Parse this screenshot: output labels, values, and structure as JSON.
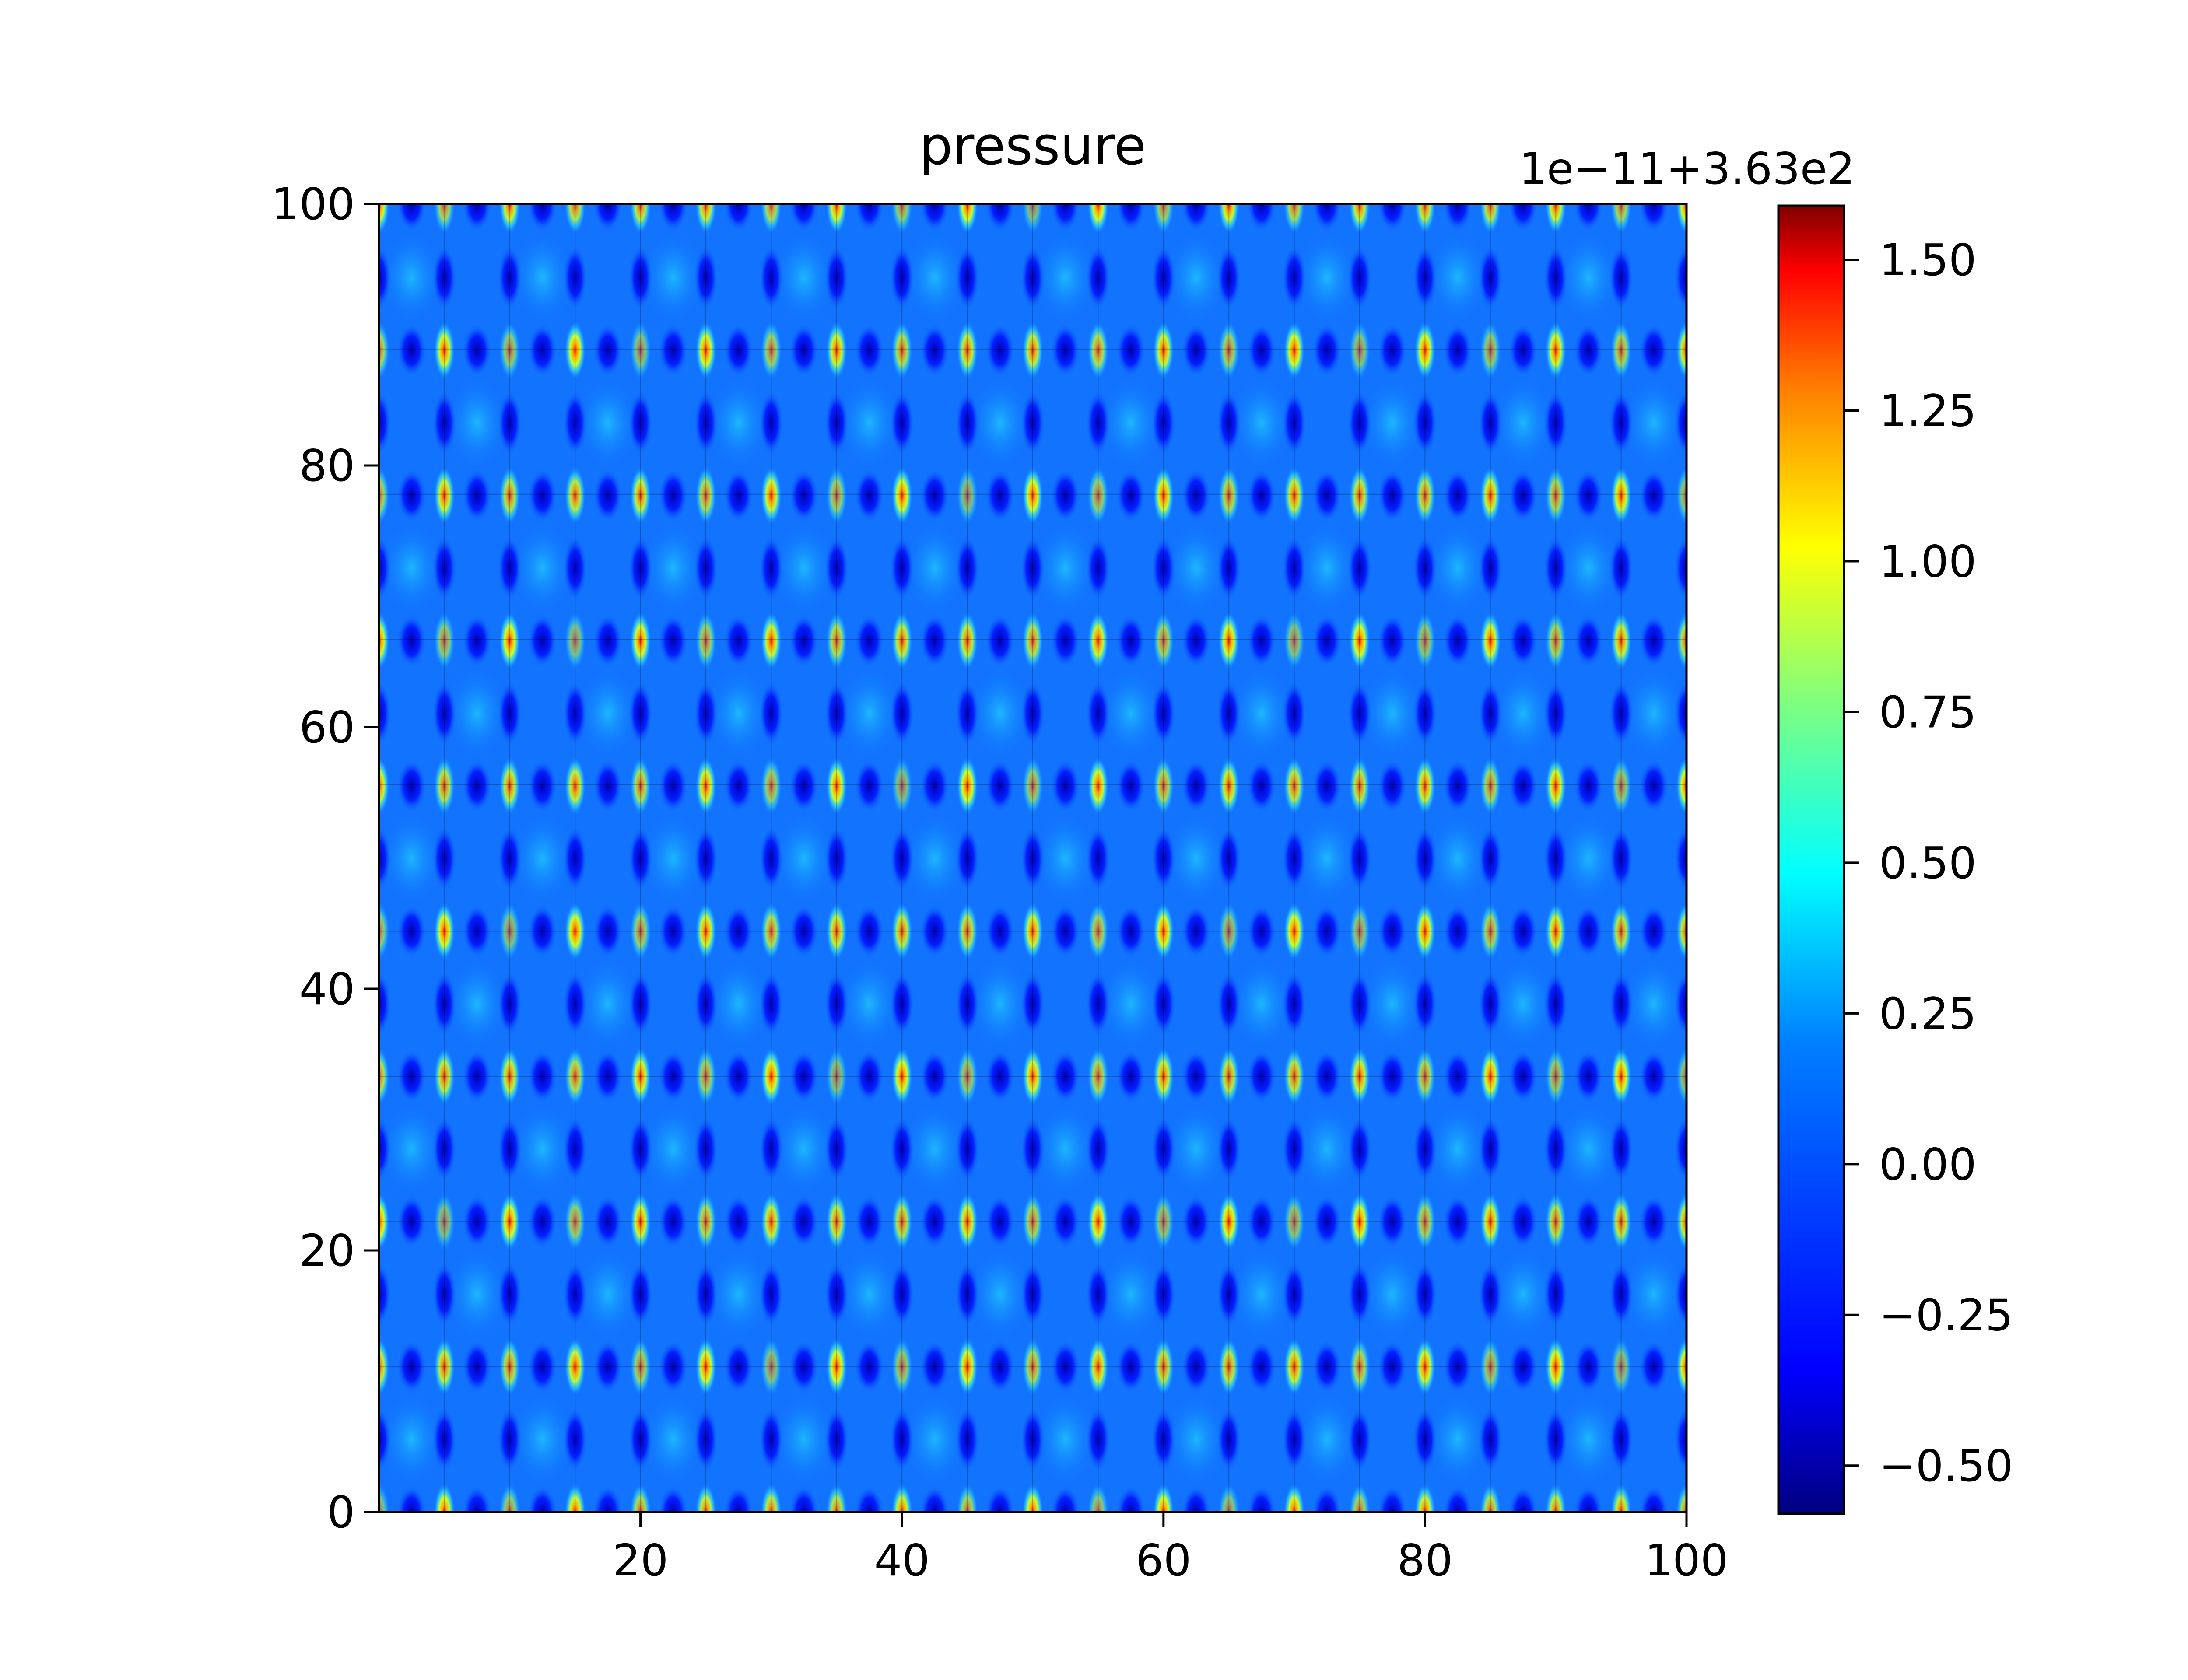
{
  "chart_data": {
    "type": "heatmap",
    "title": "pressure",
    "xlabel": "",
    "ylabel": "",
    "xlim": [
      0,
      100
    ],
    "ylim": [
      0,
      100
    ],
    "x_ticks": [
      20,
      40,
      60,
      80,
      100
    ],
    "y_ticks": [
      0,
      20,
      40,
      60,
      80,
      100
    ],
    "grid": true,
    "grid_x": [
      5,
      10,
      15,
      20,
      25,
      30,
      35,
      40,
      45,
      50,
      55,
      60,
      65,
      70,
      75,
      80,
      85,
      90,
      95
    ],
    "grid_y": [
      11.1,
      22.2,
      33.3,
      44.4,
      55.6,
      66.7,
      77.8,
      88.9
    ],
    "colormap": "jet",
    "colorbar": {
      "offset_text": "1e−11+3.63e2",
      "range": [
        -0.58,
        1.59
      ],
      "ticks": [
        -0.5,
        -0.25,
        0.0,
        0.25,
        0.5,
        0.75,
        1.0,
        1.25,
        1.5
      ],
      "tick_labels": [
        "−0.50",
        "−0.25",
        "0.00",
        "0.25",
        "0.50",
        "0.75",
        "1.00",
        "1.25",
        "1.50"
      ]
    },
    "pattern": {
      "description_values": "periodic pressure peaks on lattice nodes",
      "peak_x_spacing": 5,
      "peak_y_spacing": 11.1,
      "peak_value_range": [
        0.6,
        1.59
      ],
      "trough_value": -0.5,
      "background_value": -0.05
    },
    "colors": {
      "jet": [
        "#00007f",
        "#0000ff",
        "#007fff",
        "#00ffff",
        "#7fff7f",
        "#ffff00",
        "#ff7f00",
        "#ff0000",
        "#7f0000"
      ]
    }
  }
}
